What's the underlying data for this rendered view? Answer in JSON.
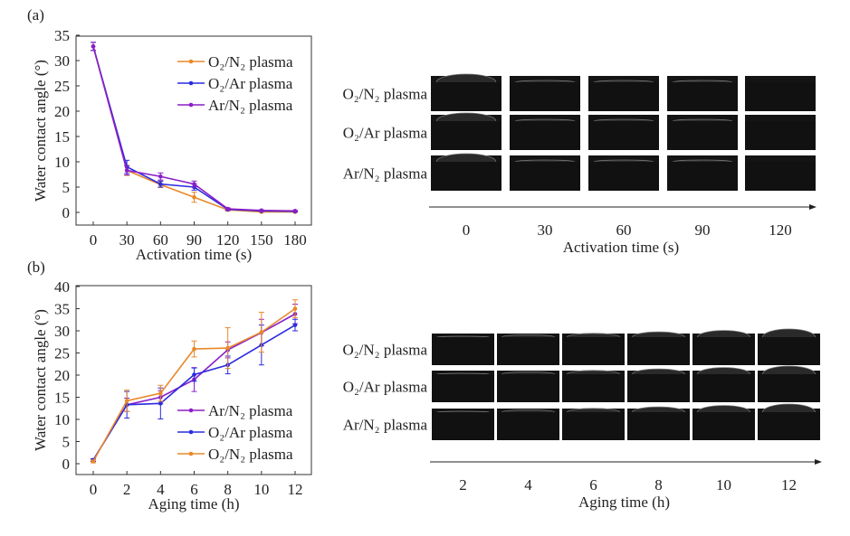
{
  "colors": {
    "o2n2": "#e8892a",
    "o2ar": "#2b2be0",
    "arn2": "#8a1fc8"
  },
  "chart_data": [
    {
      "panel": "(a)",
      "type": "line",
      "xlabel": "Activation time (s)",
      "ylabel": "Water contact angle (°)",
      "x": [
        0,
        30,
        60,
        90,
        120,
        150,
        180
      ],
      "xticks": [
        "0",
        "30",
        "60",
        "90",
        "120",
        "150",
        "180"
      ],
      "yticks": [
        "0",
        "5",
        "10",
        "15",
        "20",
        "25",
        "30",
        "35"
      ],
      "xlim": [
        -15,
        195
      ],
      "ylim": [
        -2.5,
        35
      ],
      "legend": "top-right",
      "legend_order": [
        "o2n2",
        "o2ar",
        "arn2"
      ],
      "series": [
        {
          "key": "o2n2",
          "name": "O₂/N₂ plasma",
          "values": [
            32.8,
            8.3,
            5.5,
            3.0,
            0.5,
            0.1,
            0.1
          ],
          "errors": [
            0.8,
            1.0,
            0.6,
            1.0,
            0.2,
            0.1,
            0.1
          ]
        },
        {
          "key": "o2ar",
          "name": "O₂/Ar plasma",
          "values": [
            32.8,
            9.0,
            5.6,
            5.0,
            0.6,
            0.3,
            0.2
          ],
          "errors": [
            0.8,
            1.3,
            0.6,
            0.6,
            0.2,
            0.1,
            0.1
          ]
        },
        {
          "key": "arn2",
          "name": "Ar/N₂ plasma",
          "values": [
            32.8,
            8.3,
            7.1,
            5.6,
            0.7,
            0.4,
            0.3
          ],
          "errors": [
            0.8,
            0.9,
            0.7,
            0.6,
            0.2,
            0.1,
            0.1
          ]
        }
      ]
    },
    {
      "panel": "(b)",
      "type": "line",
      "xlabel": "Aging time (h)",
      "ylabel": "Water contact angle (°)",
      "x": [
        0,
        2,
        4,
        6,
        8,
        10,
        12
      ],
      "xticks": [
        "0",
        "2",
        "4",
        "6",
        "8",
        "10",
        "12"
      ],
      "yticks": [
        "0",
        "5",
        "10",
        "15",
        "20",
        "25",
        "30",
        "35",
        "40"
      ],
      "xlim": [
        -1,
        13
      ],
      "ylim": [
        -2.5,
        40
      ],
      "legend": "bottom-right",
      "legend_order": [
        "arn2",
        "o2ar",
        "o2n2"
      ],
      "series": [
        {
          "key": "arn2",
          "name": "Ar/N₂ plasma",
          "values": [
            0.8,
            13.3,
            15.0,
            19.0,
            25.7,
            29.6,
            33.8
          ],
          "errors": [
            0.3,
            1.5,
            1.5,
            2.7,
            1.8,
            3.0,
            2.2
          ]
        },
        {
          "key": "o2ar",
          "name": "O₂/Ar plasma",
          "values": [
            0.8,
            13.3,
            13.6,
            20.1,
            22.3,
            26.8,
            31.3
          ],
          "errors": [
            0.3,
            3.0,
            3.5,
            1.5,
            2.0,
            4.5,
            1.3
          ]
        },
        {
          "key": "o2n2",
          "name": "O₂/N₂ plasma",
          "values": [
            0.5,
            14.2,
            15.9,
            25.9,
            26.1,
            29.7,
            35.0
          ],
          "errors": [
            0.3,
            2.4,
            1.8,
            1.8,
            4.6,
            4.5,
            2.0
          ]
        }
      ]
    }
  ],
  "photos_a": {
    "rows": [
      "O₂/N₂ plasma",
      "O₂/Ar plasma",
      "Ar/N₂ plasma"
    ],
    "axis_labels": [
      "0",
      "30",
      "60",
      "90",
      "120"
    ],
    "axis_title": "Activation time (s)"
  },
  "photos_b": {
    "rows": [
      "O₂/N₂ plasma",
      "O₂/Ar plasma",
      "Ar/N₂ plasma"
    ],
    "axis_labels": [
      "2",
      "4",
      "6",
      "8",
      "10",
      "12"
    ],
    "axis_title": "Aging time (h)"
  }
}
